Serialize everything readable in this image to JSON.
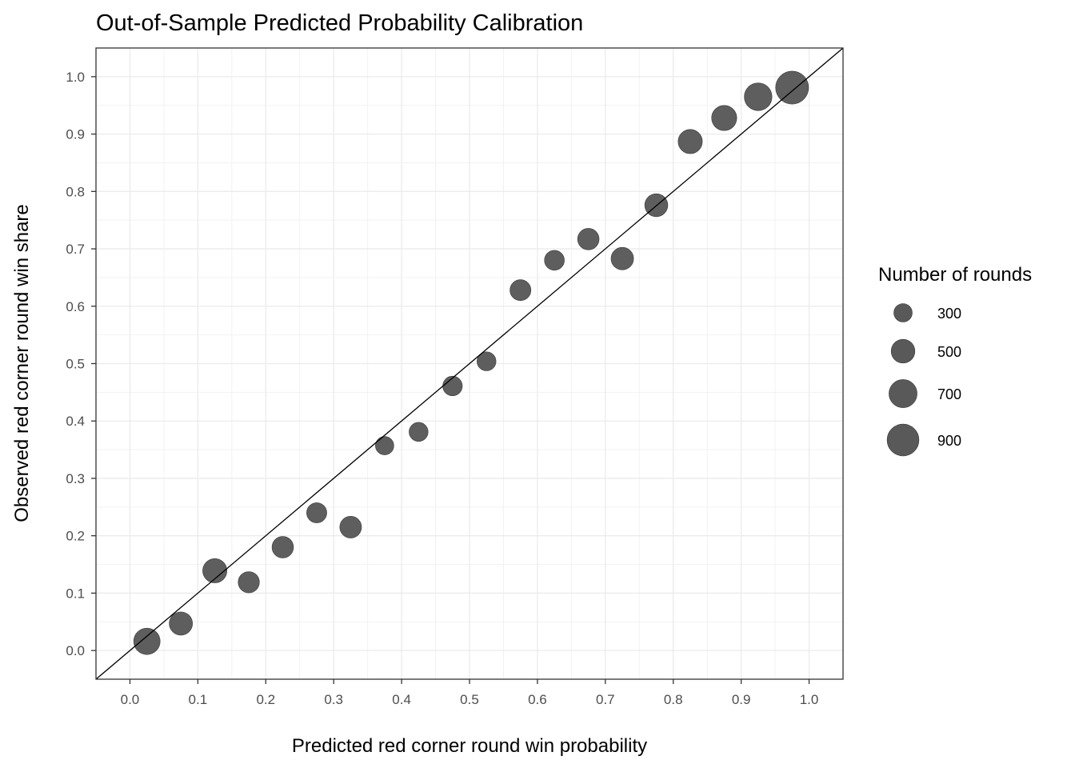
{
  "chart_data": {
    "type": "scatter",
    "title": "Out-of-Sample Predicted Probability Calibration",
    "xlabel": "Predicted red corner round win probability",
    "ylabel": "Observed red corner round win share",
    "xlim": [
      -0.05,
      1.05
    ],
    "ylim": [
      -0.05,
      1.05
    ],
    "x_ticks": [
      "0.0",
      "0.1",
      "0.2",
      "0.3",
      "0.4",
      "0.5",
      "0.6",
      "0.7",
      "0.8",
      "0.9",
      "1.0"
    ],
    "y_ticks": [
      "0.0",
      "0.1",
      "0.2",
      "0.3",
      "0.4",
      "0.5",
      "0.6",
      "0.7",
      "0.8",
      "0.9",
      "1.0"
    ],
    "grid": true,
    "reference_line": "y = x",
    "point_color": "#595959",
    "points": [
      {
        "x": 0.025,
        "y": 0.016,
        "n": 620
      },
      {
        "x": 0.075,
        "y": 0.047,
        "n": 480
      },
      {
        "x": 0.125,
        "y": 0.139,
        "n": 520
      },
      {
        "x": 0.175,
        "y": 0.119,
        "n": 400
      },
      {
        "x": 0.225,
        "y": 0.18,
        "n": 410
      },
      {
        "x": 0.275,
        "y": 0.24,
        "n": 360
      },
      {
        "x": 0.325,
        "y": 0.215,
        "n": 420
      },
      {
        "x": 0.375,
        "y": 0.357,
        "n": 300
      },
      {
        "x": 0.425,
        "y": 0.381,
        "n": 320
      },
      {
        "x": 0.475,
        "y": 0.461,
        "n": 340
      },
      {
        "x": 0.525,
        "y": 0.504,
        "n": 320
      },
      {
        "x": 0.575,
        "y": 0.628,
        "n": 390
      },
      {
        "x": 0.625,
        "y": 0.68,
        "n": 350
      },
      {
        "x": 0.675,
        "y": 0.717,
        "n": 410
      },
      {
        "x": 0.725,
        "y": 0.683,
        "n": 450
      },
      {
        "x": 0.775,
        "y": 0.776,
        "n": 470
      },
      {
        "x": 0.825,
        "y": 0.887,
        "n": 520
      },
      {
        "x": 0.875,
        "y": 0.928,
        "n": 560
      },
      {
        "x": 0.925,
        "y": 0.965,
        "n": 680
      },
      {
        "x": 0.975,
        "y": 0.981,
        "n": 960
      }
    ],
    "legend": {
      "title": "Number of rounds",
      "position": "right",
      "entries": [
        {
          "label": "300",
          "n": 300
        },
        {
          "label": "500",
          "n": 500
        },
        {
          "label": "700",
          "n": 700
        },
        {
          "label": "900",
          "n": 900
        }
      ]
    }
  }
}
